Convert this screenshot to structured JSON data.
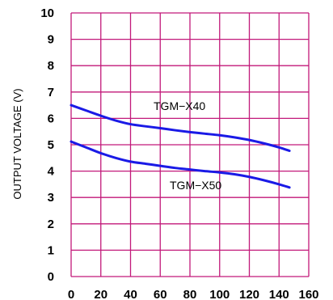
{
  "chart_data": {
    "type": "line",
    "xlabel": "",
    "ylabel": "OUTPUT VOLTAGE (V)",
    "xlim": [
      0,
      160
    ],
    "ylim": [
      0,
      10
    ],
    "x_ticks": [
      "0",
      "20",
      "40",
      "60",
      "80",
      "100",
      "120",
      "140",
      "160"
    ],
    "y_ticks": [
      "0",
      "1",
      "2",
      "3",
      "4",
      "5",
      "6",
      "7",
      "8",
      "9",
      "10"
    ],
    "grid": true,
    "grid_color": "#c2197a",
    "line_color": "#1a1ae6",
    "series": [
      {
        "name": "TGM−X40",
        "x": [
          0,
          10,
          20,
          30,
          40,
          50,
          60,
          70,
          80,
          90,
          100,
          110,
          120,
          130,
          140,
          147
        ],
        "y": [
          6.5,
          6.3,
          6.1,
          5.92,
          5.78,
          5.7,
          5.63,
          5.55,
          5.48,
          5.42,
          5.36,
          5.28,
          5.18,
          5.05,
          4.9,
          4.77
        ]
      },
      {
        "name": "TGM−X50",
        "x": [
          0,
          10,
          20,
          30,
          40,
          50,
          60,
          70,
          80,
          90,
          100,
          110,
          120,
          130,
          140,
          147
        ],
        "y": [
          5.12,
          4.9,
          4.68,
          4.5,
          4.36,
          4.28,
          4.2,
          4.12,
          4.06,
          4.0,
          3.95,
          3.88,
          3.78,
          3.65,
          3.5,
          3.38
        ]
      }
    ]
  }
}
